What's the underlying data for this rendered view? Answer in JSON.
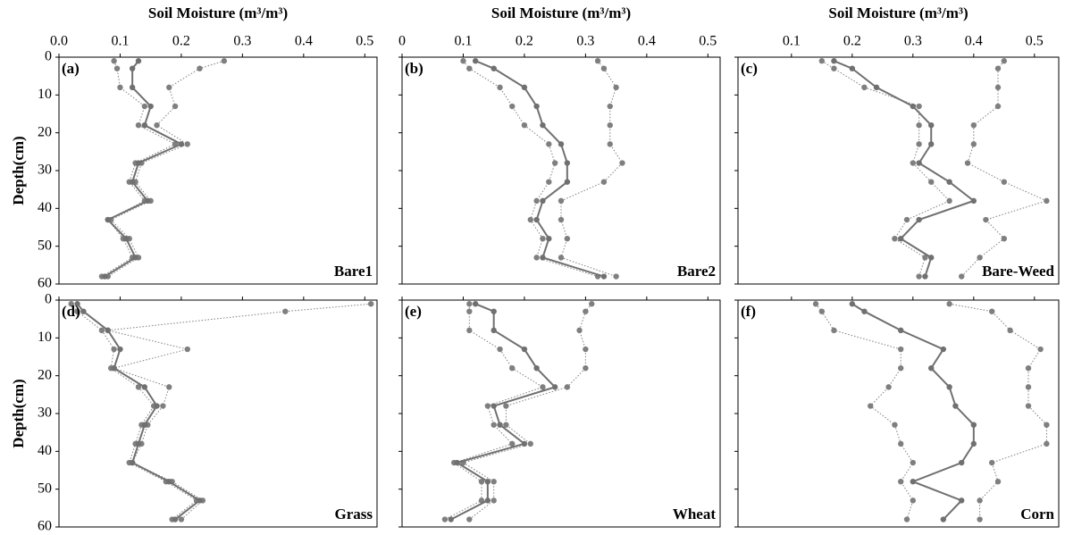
{
  "chart_data": [
    {
      "type": "line",
      "panel_label": "(a)",
      "site_label": "Bare1",
      "xlabel": "Soil Moisture (m³/m³)",
      "ylabel": "Depth(cm)",
      "xlim": [
        0,
        0.52
      ],
      "xticks": [
        {
          "value": 0,
          "label": "0.0"
        },
        0.1,
        0.2,
        0.3,
        0.4,
        0.5
      ],
      "ylim": [
        0,
        60
      ],
      "yticks": [
        0,
        10,
        20,
        30,
        40,
        50,
        60
      ],
      "y_inverted": true,
      "xtick_labels": true,
      "ytick_labels": true,
      "y": [
        1,
        3,
        8,
        13,
        18,
        23,
        28,
        33,
        38,
        43,
        48,
        53,
        58
      ],
      "series": [
        {
          "color": "#7f7f7f",
          "style": "dotted",
          "values": [
            0.27,
            0.23,
            0.18,
            0.19,
            0.16,
            0.21,
            0.135,
            0.125,
            0.15,
            0.085,
            0.115,
            0.13,
            0.08
          ]
        },
        {
          "color": "#7f7f7f",
          "style": "dotted",
          "values": [
            0.09,
            0.095,
            0.1,
            0.14,
            0.13,
            0.19,
            0.125,
            0.115,
            0.14,
            0.08,
            0.105,
            0.12,
            0.07
          ]
        },
        {
          "color": "#707070",
          "style": "solid",
          "values": [
            0.13,
            0.12,
            0.12,
            0.15,
            0.14,
            0.2,
            0.13,
            0.12,
            0.145,
            0.08,
            0.11,
            0.125,
            0.075
          ]
        }
      ]
    },
    {
      "type": "line",
      "panel_label": "(b)",
      "site_label": "Bare2",
      "xlabel": "Soil Moisture (m³/m³)",
      "xlim": [
        0,
        0.52
      ],
      "xticks": [
        {
          "value": 0,
          "label": "0"
        },
        0.1,
        0.2,
        0.3,
        0.4,
        0.5
      ],
      "ylim": [
        0,
        60
      ],
      "yticks": [
        0,
        10,
        20,
        30,
        40,
        50,
        60
      ],
      "y_inverted": true,
      "xtick_labels": true,
      "ytick_labels": false,
      "y": [
        1,
        3,
        8,
        13,
        18,
        23,
        28,
        33,
        38,
        43,
        48,
        53,
        58
      ],
      "series": [
        {
          "color": "#7f7f7f",
          "style": "dotted",
          "values": [
            0.32,
            0.33,
            0.35,
            0.34,
            0.34,
            0.34,
            0.36,
            0.33,
            0.26,
            0.26,
            0.27,
            0.26,
            0.35
          ]
        },
        {
          "color": "#7f7f7f",
          "style": "dotted",
          "values": [
            0.1,
            0.11,
            0.16,
            0.18,
            0.2,
            0.24,
            0.25,
            0.24,
            0.22,
            0.21,
            0.23,
            0.22,
            0.32
          ]
        },
        {
          "color": "#707070",
          "style": "solid",
          "values": [
            0.12,
            0.15,
            0.2,
            0.22,
            0.23,
            0.26,
            0.27,
            0.27,
            0.23,
            0.22,
            0.24,
            0.23,
            0.33
          ]
        }
      ]
    },
    {
      "type": "line",
      "panel_label": "(c)",
      "site_label": "Bare-Weed",
      "xlabel": "Soil Moisture (m³/m³)",
      "xlim": [
        0.012,
        0.54
      ],
      "xticks": [
        0.1,
        0.2,
        0.3,
        0.4,
        0.5
      ],
      "ylim": [
        0,
        60
      ],
      "yticks": [
        0,
        10,
        20,
        30,
        40,
        50,
        60
      ],
      "y_inverted": true,
      "xtick_labels": true,
      "ytick_labels": false,
      "y": [
        1,
        3,
        8,
        13,
        18,
        23,
        28,
        33,
        38,
        43,
        48,
        53,
        58
      ],
      "series": [
        {
          "color": "#7f7f7f",
          "style": "dotted",
          "values": [
            0.45,
            0.44,
            0.44,
            0.44,
            0.4,
            0.4,
            0.39,
            0.45,
            0.52,
            0.42,
            0.45,
            0.41,
            0.38
          ]
        },
        {
          "color": "#7f7f7f",
          "style": "dotted",
          "values": [
            0.15,
            0.17,
            0.22,
            0.31,
            0.31,
            0.31,
            0.3,
            0.33,
            0.36,
            0.29,
            0.27,
            0.32,
            0.31
          ]
        },
        {
          "color": "#707070",
          "style": "solid",
          "values": [
            0.17,
            0.2,
            0.24,
            0.3,
            0.33,
            0.33,
            0.31,
            0.36,
            0.4,
            0.31,
            0.28,
            0.33,
            0.32
          ]
        }
      ]
    },
    {
      "type": "line",
      "panel_label": "(d)",
      "site_label": "Grass",
      "ylabel": "Depth(cm)",
      "xlim": [
        0,
        0.52
      ],
      "xticks": [
        0,
        0.1,
        0.2,
        0.3,
        0.4,
        0.5
      ],
      "ylim": [
        0,
        60
      ],
      "yticks": [
        0,
        10,
        20,
        30,
        40,
        50,
        60
      ],
      "y_inverted": true,
      "xtick_labels": false,
      "ytick_labels": true,
      "y": [
        1,
        3,
        8,
        13,
        18,
        23,
        28,
        33,
        38,
        43,
        48,
        53,
        58
      ],
      "series": [
        {
          "color": "#7f7f7f",
          "style": "dotted",
          "values": [
            0.51,
            0.37,
            0.08,
            0.21,
            0.09,
            0.18,
            0.17,
            0.145,
            0.135,
            0.12,
            0.185,
            0.235,
            0.2
          ]
        },
        {
          "color": "#7f7f7f",
          "style": "dotted",
          "values": [
            0.02,
            0.03,
            0.07,
            0.09,
            0.085,
            0.13,
            0.155,
            0.135,
            0.125,
            0.115,
            0.175,
            0.225,
            0.185
          ]
        },
        {
          "color": "#707070",
          "style": "solid",
          "values": [
            0.03,
            0.04,
            0.08,
            0.1,
            0.09,
            0.14,
            0.16,
            0.14,
            0.13,
            0.12,
            0.18,
            0.23,
            0.19
          ]
        }
      ]
    },
    {
      "type": "line",
      "panel_label": "(e)",
      "site_label": "Wheat",
      "xlim": [
        0,
        0.52
      ],
      "xticks": [
        0,
        0.1,
        0.2,
        0.3,
        0.4,
        0.5
      ],
      "ylim": [
        0,
        60
      ],
      "yticks": [
        0,
        10,
        20,
        30,
        40,
        50,
        60
      ],
      "y_inverted": true,
      "xtick_labels": false,
      "ytick_labels": false,
      "y": [
        1,
        3,
        8,
        13,
        18,
        23,
        28,
        33,
        38,
        43,
        48,
        53,
        58
      ],
      "series": [
        {
          "color": "#7f7f7f",
          "style": "dotted",
          "values": [
            0.31,
            0.3,
            0.29,
            0.3,
            0.3,
            0.27,
            0.17,
            0.17,
            0.21,
            0.1,
            0.15,
            0.15,
            0.11
          ]
        },
        {
          "color": "#7f7f7f",
          "style": "dotted",
          "values": [
            0.11,
            0.11,
            0.11,
            0.16,
            0.18,
            0.23,
            0.14,
            0.15,
            0.18,
            0.085,
            0.13,
            0.13,
            0.07
          ]
        },
        {
          "color": "#707070",
          "style": "solid",
          "values": [
            0.12,
            0.15,
            0.15,
            0.2,
            0.22,
            0.25,
            0.15,
            0.16,
            0.2,
            0.09,
            0.14,
            0.14,
            0.08
          ]
        }
      ]
    },
    {
      "type": "line",
      "panel_label": "(f)",
      "site_label": "Corn",
      "xlim": [
        0.012,
        0.54
      ],
      "xticks": [
        0.1,
        0.2,
        0.3,
        0.4,
        0.5
      ],
      "ylim": [
        0,
        60
      ],
      "yticks": [
        0,
        10,
        20,
        30,
        40,
        50,
        60
      ],
      "y_inverted": true,
      "xtick_labels": false,
      "ytick_labels": false,
      "y": [
        1,
        3,
        8,
        13,
        18,
        23,
        28,
        33,
        38,
        43,
        48,
        53,
        58
      ],
      "series": [
        {
          "color": "#7f7f7f",
          "style": "dotted",
          "values": [
            0.36,
            0.43,
            0.46,
            0.51,
            0.49,
            0.49,
            0.49,
            0.52,
            0.52,
            0.43,
            0.44,
            0.41,
            0.41
          ]
        },
        {
          "color": "#7f7f7f",
          "style": "dotted",
          "values": [
            0.14,
            0.15,
            0.17,
            0.28,
            0.28,
            0.26,
            0.23,
            0.27,
            0.28,
            0.3,
            0.28,
            0.3,
            0.29
          ]
        },
        {
          "color": "#707070",
          "style": "solid",
          "values": [
            0.2,
            0.22,
            0.28,
            0.35,
            0.33,
            0.36,
            0.37,
            0.4,
            0.4,
            0.38,
            0.3,
            0.38,
            0.35
          ]
        }
      ]
    }
  ]
}
